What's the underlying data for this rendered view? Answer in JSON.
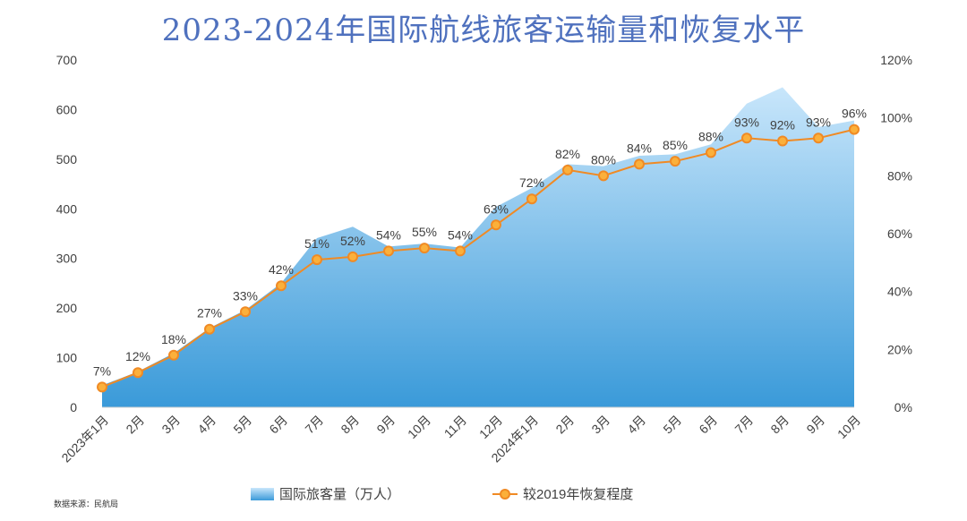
{
  "chart_data": {
    "type": "area",
    "title": "2023-2024年国际航线旅客运输量和恢复水平",
    "categories": [
      "2023年1月",
      "2月",
      "3月",
      "4月",
      "5月",
      "6月",
      "7月",
      "8月",
      "9月",
      "10月",
      "11月",
      "12月",
      "2024年1月",
      "2月",
      "3月",
      "4月",
      "5月",
      "6月",
      "7月",
      "8月",
      "9月",
      "10月"
    ],
    "series": [
      {
        "name": "国际旅客量（万人）",
        "type": "area",
        "axis": "left",
        "color": "#3d9bdb",
        "values": [
          44,
          72,
          109,
          160,
          196,
          250,
          341,
          364,
          324,
          330,
          322,
          404,
          442,
          490,
          486,
          507,
          510,
          530,
          612,
          645,
          565,
          578
        ]
      },
      {
        "name": "较2019年恢复程度",
        "type": "line",
        "axis": "right",
        "color": "#f08a24",
        "values": [
          7,
          12,
          18,
          27,
          33,
          42,
          51,
          52,
          54,
          55,
          54,
          63,
          72,
          82,
          80,
          84,
          85,
          88,
          93,
          92,
          93,
          96
        ],
        "labels": [
          "7%",
          "12%",
          "18%",
          "27%",
          "33%",
          "42%",
          "51%",
          "52%",
          "54%",
          "55%",
          "54%",
          "63%",
          "72%",
          "82%",
          "80%",
          "84%",
          "85%",
          "88%",
          "93%",
          "92%",
          "93%",
          "96%"
        ]
      }
    ],
    "y_left": {
      "min": 0,
      "max": 700,
      "ticks": [
        "0",
        "100",
        "200",
        "300",
        "400",
        "500",
        "600",
        "700"
      ]
    },
    "y_right": {
      "min": 0,
      "max": 120,
      "ticks": [
        "0%",
        "20%",
        "40%",
        "60%",
        "80%",
        "100%",
        "120%"
      ]
    },
    "grid": false,
    "legend_position": "bottom",
    "source": "数据来源：民航局"
  }
}
